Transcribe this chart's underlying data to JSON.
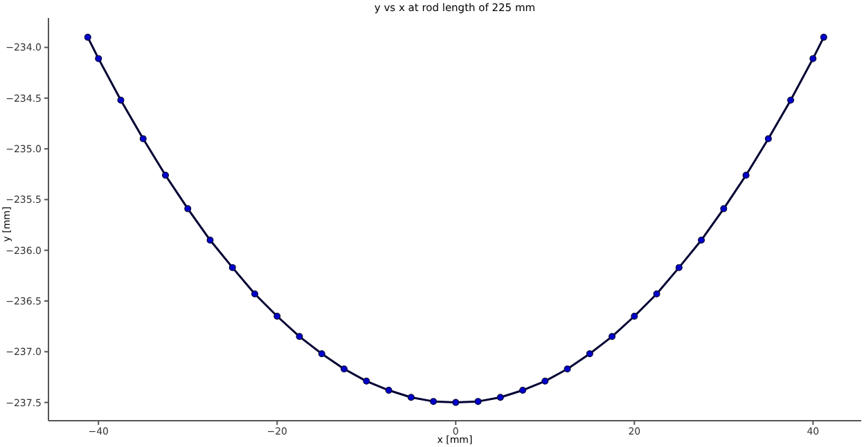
{
  "chart_data": {
    "type": "line",
    "title": "y vs x at rod length of 225 mm",
    "xlabel": "x [mm]",
    "ylabel": "y [mm]",
    "x": [
      -41.2,
      -40,
      -37.5,
      -35,
      -32.5,
      -30,
      -27.5,
      -25,
      -22.5,
      -20,
      -17.5,
      -15,
      -12.5,
      -10,
      -7.5,
      -5,
      -2.5,
      0,
      2.5,
      5,
      7.5,
      10,
      12.5,
      15,
      17.5,
      20,
      22.5,
      25,
      27.5,
      30,
      32.5,
      35,
      37.5,
      40,
      41.2
    ],
    "series": [
      {
        "color": "#0000cc",
        "values": [
          -233.9,
          -234.11,
          -234.52,
          -234.9,
          -235.26,
          -235.59,
          -235.9,
          -236.17,
          -236.43,
          -236.65,
          -236.85,
          -237.02,
          -237.17,
          -237.29,
          -237.38,
          -237.45,
          -237.49,
          -237.5,
          -237.49,
          -237.45,
          -237.38,
          -237.29,
          -237.17,
          -237.02,
          -236.85,
          -236.65,
          -236.43,
          -236.17,
          -235.9,
          -235.59,
          -235.26,
          -234.9,
          -234.52,
          -234.11,
          -233.9
        ]
      }
    ],
    "xlim": [
      -45.6,
      45.4
    ],
    "xticks": [
      {
        "value": -40,
        "label": "−40"
      },
      {
        "value": -20,
        "label": "−20"
      },
      0,
      20,
      40
    ],
    "ylim": [
      -237.68,
      -233.71
    ],
    "yticks": [
      {
        "value": -237.5,
        "label": "−237.5"
      },
      {
        "value": -237,
        "label": "−237.0"
      },
      {
        "value": -236.5,
        "label": "−236.5"
      },
      {
        "value": -236,
        "label": "−236.0"
      },
      {
        "value": -235.5,
        "label": "−235.5"
      },
      {
        "value": -235,
        "label": "−235.0"
      },
      {
        "value": -234.5,
        "label": "−234.5"
      },
      {
        "value": -234,
        "label": "−234.0"
      }
    ],
    "marker": "circle",
    "line_style": "solid",
    "grid": false,
    "legend": false
  }
}
